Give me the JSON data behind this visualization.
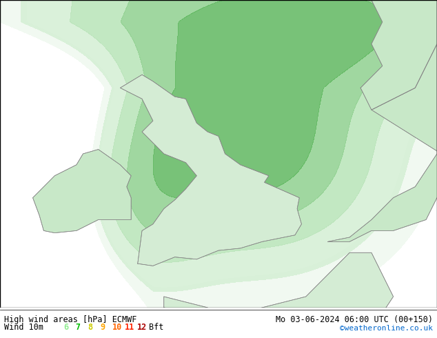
{
  "title_left": "High wind areas [hPa] ECMWF",
  "title_right": "Mo 03-06-2024 06:00 UTC (00+150)",
  "subtitle_left": "Wind 10m",
  "bft_nums": [
    "6",
    "7",
    "8",
    "9",
    "10",
    "11",
    "12"
  ],
  "bft_colors": [
    "#90ee90",
    "#00bb00",
    "#cccc00",
    "#ffa500",
    "#ff6600",
    "#ff2200",
    "#aa0000"
  ],
  "bft_suffix": "Bft",
  "copyright": "©weatheronline.co.uk",
  "sea_color": "#ddeeff",
  "contour_color": "#ff0000",
  "contour_linewidth": 1.5,
  "contour_levels": [
    1016,
    1018,
    1020,
    1022,
    1024,
    1026,
    1028
  ],
  "footer_bg": "#ffffff",
  "border_color": "#888888",
  "xlim": [
    -12,
    8
  ],
  "ylim": [
    48,
    62
  ]
}
